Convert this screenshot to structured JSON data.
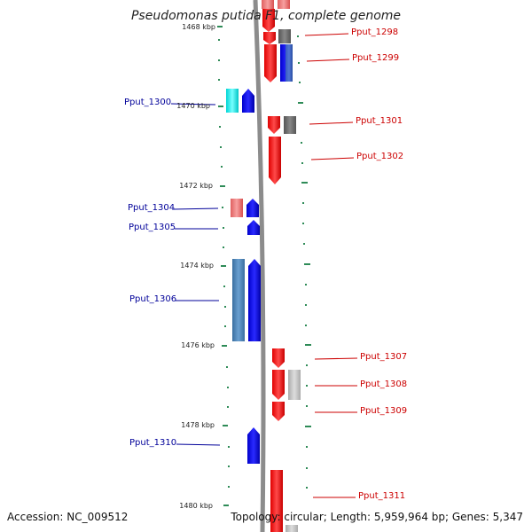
{
  "title": "Pseudomonas putida F1, complete genome",
  "footer": {
    "accession": "Accession: NC_009512",
    "summary": "Topology: circular; Length: 5,959,964 bp; Genes: 5,347"
  },
  "chart_data": {
    "type": "genome-map",
    "ticks": [
      "1468 kbp",
      "1470 kbp",
      "1472 kbp",
      "1474 kbp",
      "1476 kbp",
      "1478 kbp",
      "1480 kbp"
    ],
    "genes_right": [
      "Pput_1298",
      "Pput_1299",
      "Pput_1301",
      "Pput_1302",
      "Pput_1307",
      "Pput_1308",
      "Pput_1309",
      "Pput_1311"
    ],
    "genes_left": [
      "Pput_1300",
      "Pput_1304",
      "Pput_1305",
      "Pput_1306",
      "Pput_1310"
    ]
  },
  "colors": {
    "forward": "#ff0000",
    "reverse": "#0000ff",
    "right_label": "#cc0000",
    "left_label": "#000099",
    "tick": "#2e8b57",
    "backbone": "#8c8c8c"
  }
}
